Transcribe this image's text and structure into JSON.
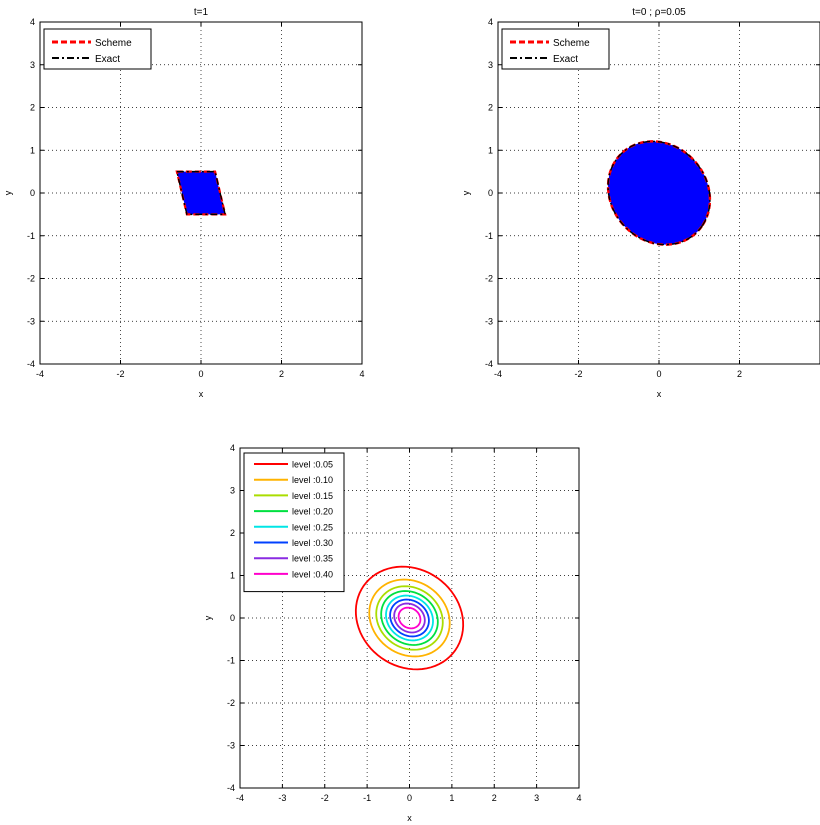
{
  "chart_data": [
    {
      "type": "area",
      "title": "t=1",
      "xlabel": "x",
      "ylabel": "y",
      "xlim": [
        -4,
        4
      ],
      "ylim": [
        -4,
        4
      ],
      "xticks": [
        -4,
        -2,
        0,
        2,
        4
      ],
      "yticks": [
        -4,
        -3,
        -2,
        -1,
        0,
        1,
        2,
        3,
        4
      ],
      "grid": true,
      "legend_position": "top-left",
      "legend": [
        "Scheme",
        "Exact"
      ],
      "fill_color": "#0000ff",
      "shape": "parallelogram",
      "vertices": [
        [
          -0.6,
          0.5
        ],
        [
          0.35,
          0.5
        ],
        [
          0.6,
          -0.5
        ],
        [
          -0.35,
          -0.5
        ]
      ],
      "series": [
        {
          "name": "Scheme",
          "color": "#ff0000",
          "style": "dashed"
        },
        {
          "name": "Exact",
          "color": "#000000",
          "style": "dash-dot"
        }
      ]
    },
    {
      "type": "area",
      "title": "t=0 ; ρ=0.05",
      "xlabel": "x",
      "ylabel": "y",
      "xlim": [
        -4,
        4
      ],
      "ylim": [
        -4,
        4
      ],
      "xticks": [
        -4,
        -2,
        0,
        2
      ],
      "yticks": [
        -4,
        -3,
        -2,
        -1,
        0,
        1,
        2,
        3,
        4
      ],
      "grid": true,
      "legend_position": "top-left",
      "legend": [
        "Scheme",
        "Exact"
      ],
      "fill_color": "#0000ff",
      "shape": "ellipse",
      "ellipse": {
        "cx": 0,
        "cy": 0,
        "a": 1.32,
        "b": 1.15,
        "rotation_deg": -35
      },
      "series": [
        {
          "name": "Scheme",
          "color": "#ff0000",
          "style": "dashed"
        },
        {
          "name": "Exact",
          "color": "#000000",
          "style": "dash-dot"
        }
      ]
    },
    {
      "type": "line",
      "title": "",
      "xlabel": "x",
      "ylabel": "y",
      "xlim": [
        -4,
        4
      ],
      "ylim": [
        -4,
        4
      ],
      "xticks": [
        -4,
        -3,
        -2,
        -1,
        0,
        1,
        2,
        3,
        4
      ],
      "yticks": [
        -4,
        -3,
        -2,
        -1,
        0,
        1,
        2,
        3,
        4
      ],
      "grid": true,
      "legend_position": "top-left",
      "contours": [
        {
          "name": "level :0.05",
          "level": 0.05,
          "color": "#ff0000",
          "a": 1.32,
          "b": 1.15,
          "rotation_deg": -35
        },
        {
          "name": "level :0.10",
          "level": 0.1,
          "color": "#ffb300",
          "a": 0.99,
          "b": 0.86,
          "rotation_deg": -35
        },
        {
          "name": "level :0.15",
          "level": 0.15,
          "color": "#aadd00",
          "a": 0.82,
          "b": 0.71,
          "rotation_deg": -35
        },
        {
          "name": "level :0.20",
          "level": 0.2,
          "color": "#00e040",
          "a": 0.7,
          "b": 0.6,
          "rotation_deg": -35
        },
        {
          "name": "level :0.25",
          "level": 0.25,
          "color": "#00e5e5",
          "a": 0.58,
          "b": 0.5,
          "rotation_deg": -35
        },
        {
          "name": "level :0.30",
          "level": 0.3,
          "color": "#0040ff",
          "a": 0.48,
          "b": 0.41,
          "rotation_deg": -35
        },
        {
          "name": "level :0.35",
          "level": 0.35,
          "color": "#8a2be2",
          "a": 0.38,
          "b": 0.32,
          "rotation_deg": -35
        },
        {
          "name": "level :0.40",
          "level": 0.4,
          "color": "#ff00cc",
          "a": 0.27,
          "b": 0.23,
          "rotation_deg": -35
        }
      ]
    }
  ]
}
